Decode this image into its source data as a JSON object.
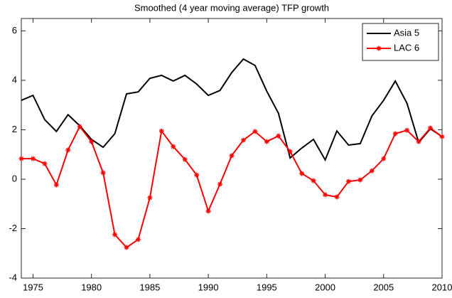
{
  "chart_data": {
    "type": "line",
    "title": "Smoothed (4 year moving average) TFP growth",
    "x": [
      1974,
      1975,
      1976,
      1977,
      1978,
      1979,
      1980,
      1981,
      1982,
      1983,
      1984,
      1985,
      1986,
      1987,
      1988,
      1989,
      1990,
      1991,
      1992,
      1993,
      1994,
      1995,
      1996,
      1997,
      1998,
      1999,
      2000,
      2001,
      2002,
      2003,
      2004,
      2005,
      2006,
      2007,
      2008,
      2009,
      2010
    ],
    "series": [
      {
        "name": "Asia 5",
        "color": "#000000",
        "values": [
          3.19,
          3.39,
          2.41,
          1.93,
          2.61,
          2.16,
          1.61,
          1.29,
          1.84,
          3.45,
          3.53,
          4.08,
          4.2,
          3.97,
          4.2,
          3.85,
          3.39,
          3.59,
          4.31,
          4.86,
          4.6,
          3.56,
          2.67,
          0.86,
          1.26,
          1.61,
          0.78,
          1.95,
          1.38,
          1.44,
          2.56,
          3.19,
          3.97,
          3.07,
          1.49,
          2.04,
          1.72
        ]
      },
      {
        "name": "LAC 6",
        "color": "#ff0000",
        "marker": "asterisk",
        "values": [
          0.83,
          0.83,
          0.63,
          -0.23,
          1.18,
          2.13,
          1.52,
          0.26,
          -2.24,
          -2.76,
          -2.44,
          -0.75,
          1.95,
          1.32,
          0.8,
          0.17,
          -1.29,
          -0.2,
          0.95,
          1.58,
          1.93,
          1.52,
          1.75,
          1.12,
          0.23,
          -0.06,
          -0.63,
          -0.72,
          -0.09,
          -0.03,
          0.34,
          0.83,
          1.84,
          1.98,
          1.52,
          2.07,
          1.72
        ]
      }
    ],
    "xlim": [
      1974,
      2010
    ],
    "xticks": [
      1975,
      1980,
      1985,
      1990,
      1995,
      2000,
      2005,
      2010
    ],
    "ylim": [
      -4,
      6.5
    ],
    "yticks": [
      -4,
      -2,
      0,
      2,
      4,
      6
    ],
    "grid": false,
    "legend": "upper right"
  }
}
